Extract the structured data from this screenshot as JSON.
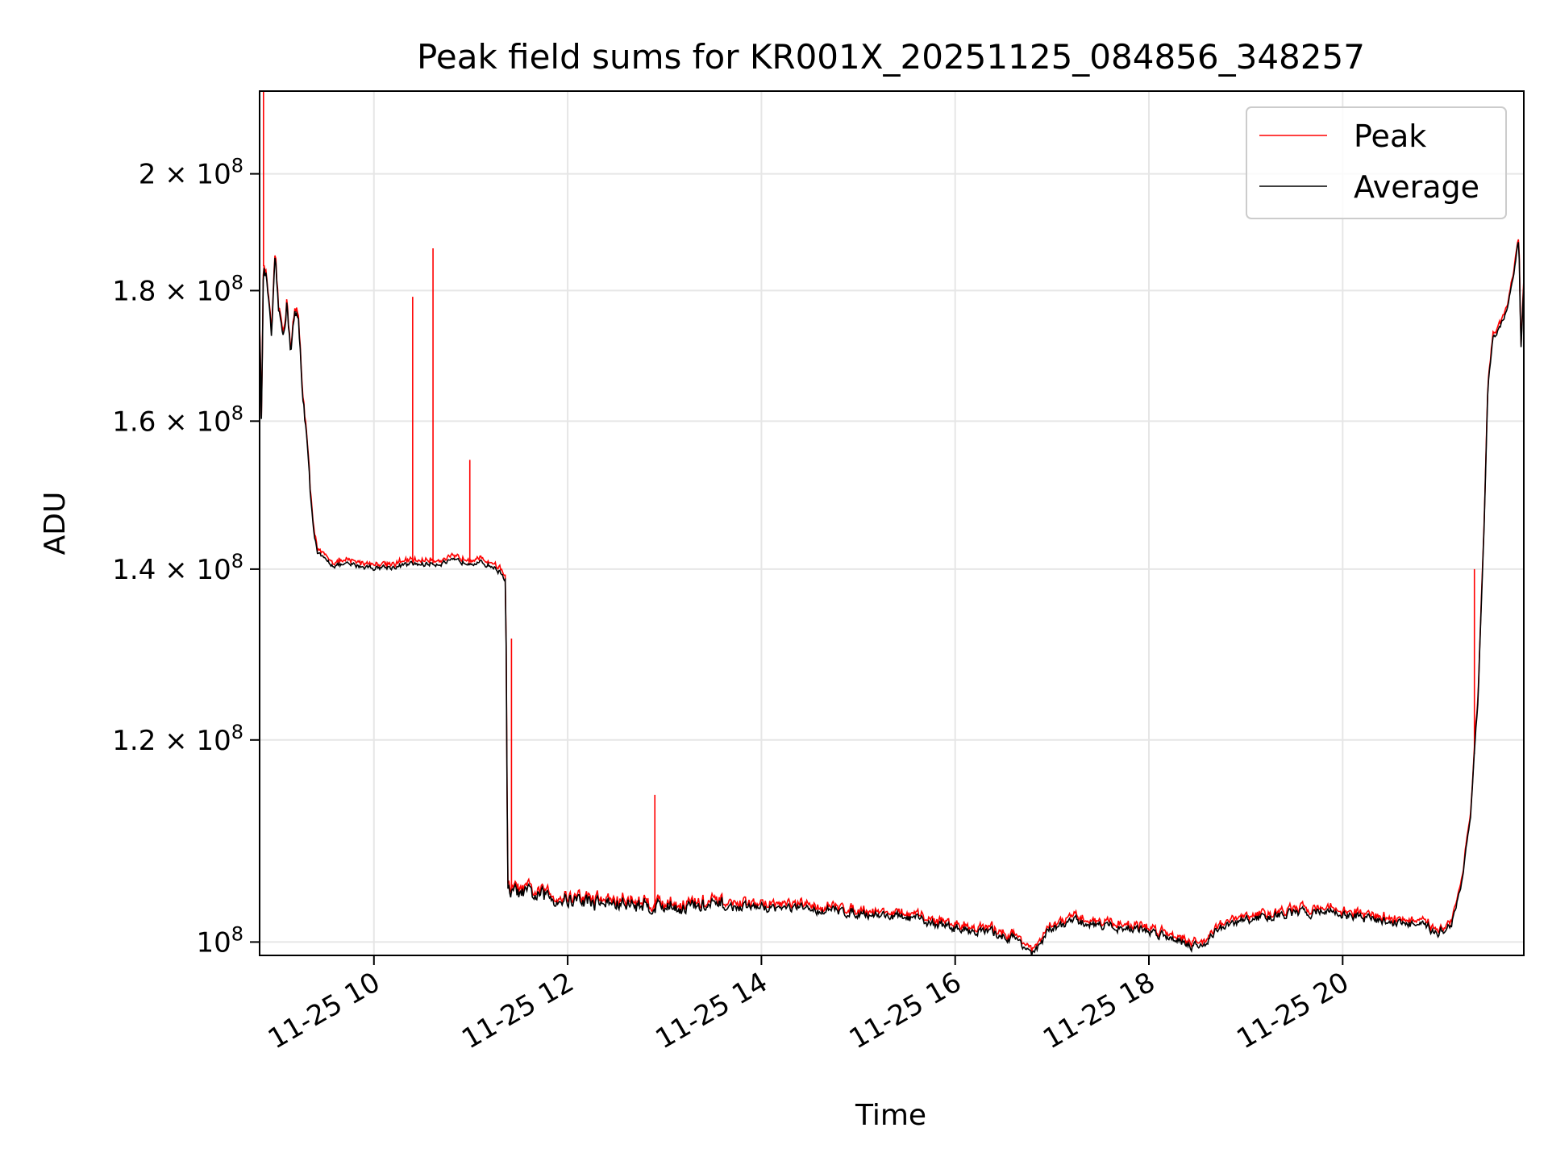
{
  "chart_data": {
    "type": "line",
    "title": "Peak field sums for KR001X_20251125_084856_348257",
    "xlabel": "Time",
    "ylabel": "ADU",
    "yscale": "log",
    "ylim": [
      98800000,
      215500000
    ],
    "xlim_hours": [
      8.82,
      21.87
    ],
    "grid": true,
    "legend_position": "top-right",
    "x_ticks": [
      {
        "hour": 10,
        "label": "11-25 10"
      },
      {
        "hour": 12,
        "label": "11-25 12"
      },
      {
        "hour": 14,
        "label": "11-25 14"
      },
      {
        "hour": 16,
        "label": "11-25 16"
      },
      {
        "hour": 18,
        "label": "11-25 18"
      },
      {
        "hour": 20,
        "label": "11-25 20"
      }
    ],
    "y_ticks": [
      {
        "value": 100000000,
        "base": "10",
        "exp": "8"
      },
      {
        "value": 120000000,
        "base": "1.2 × 10",
        "exp": "8"
      },
      {
        "value": 140000000,
        "base": "1.4 × 10",
        "exp": "8"
      },
      {
        "value": 160000000,
        "base": "1.6 × 10",
        "exp": "8"
      },
      {
        "value": 180000000,
        "base": "1.8 × 10",
        "exp": "8"
      },
      {
        "value": 200000000,
        "base": "2 × 10",
        "exp": "8"
      }
    ],
    "series": [
      {
        "name": "Peak",
        "color": "#ff0000"
      },
      {
        "name": "Average",
        "color": "#000000"
      }
    ],
    "average_profile": [
      [
        8.82,
        175000000
      ],
      [
        8.84,
        160000000
      ],
      [
        8.86,
        184000000
      ],
      [
        8.9,
        181000000
      ],
      [
        8.94,
        172000000
      ],
      [
        8.98,
        184000000
      ],
      [
        9.02,
        176000000
      ],
      [
        9.06,
        173000000
      ],
      [
        9.1,
        178000000
      ],
      [
        9.14,
        171000000
      ],
      [
        9.18,
        176000000
      ],
      [
        9.22,
        175000000
      ],
      [
        9.26,
        165000000
      ],
      [
        9.3,
        159000000
      ],
      [
        9.34,
        150000000
      ],
      [
        9.38,
        145000000
      ],
      [
        9.42,
        142000000
      ],
      [
        9.5,
        141000000
      ],
      [
        9.6,
        140500000
      ],
      [
        9.8,
        140500000
      ],
      [
        10.0,
        140200000
      ],
      [
        10.2,
        140300000
      ],
      [
        10.4,
        140600000
      ],
      [
        10.6,
        140700000
      ],
      [
        10.8,
        140900000
      ],
      [
        11.0,
        141000000
      ],
      [
        11.2,
        140500000
      ],
      [
        11.32,
        139500000
      ],
      [
        11.36,
        138500000
      ],
      [
        11.38,
        104500000
      ],
      [
        11.5,
        104500000
      ],
      [
        11.9,
        104000000
      ],
      [
        12.5,
        103500000
      ],
      [
        13.0,
        103300000
      ],
      [
        13.5,
        103200000
      ],
      [
        14.0,
        103200000
      ],
      [
        14.5,
        103000000
      ],
      [
        15.0,
        102700000
      ],
      [
        15.5,
        102200000
      ],
      [
        16.0,
        101300000
      ],
      [
        16.4,
        100800000
      ],
      [
        16.65,
        100200000
      ],
      [
        16.82,
        98800000
      ],
      [
        16.95,
        100900000
      ],
      [
        17.2,
        101900000
      ],
      [
        17.6,
        101500000
      ],
      [
        18.0,
        101000000
      ],
      [
        18.3,
        100300000
      ],
      [
        18.52,
        99500000
      ],
      [
        18.7,
        101100000
      ],
      [
        19.0,
        102000000
      ],
      [
        19.4,
        102500000
      ],
      [
        19.8,
        102900000
      ],
      [
        20.2,
        102200000
      ],
      [
        20.6,
        101800000
      ],
      [
        20.9,
        101200000
      ],
      [
        21.0,
        100900000
      ],
      [
        21.12,
        101600000
      ],
      [
        21.22,
        105000000
      ],
      [
        21.32,
        112000000
      ],
      [
        21.4,
        125000000
      ],
      [
        21.46,
        145000000
      ],
      [
        21.5,
        165000000
      ],
      [
        21.55,
        172000000
      ],
      [
        21.62,
        174000000
      ],
      [
        21.7,
        177000000
      ],
      [
        21.76,
        182000000
      ],
      [
        21.8,
        187000000
      ],
      [
        21.82,
        188000000
      ],
      [
        21.84,
        170000000
      ],
      [
        21.87,
        181000000
      ]
    ],
    "peak_spikes": [
      {
        "hour": 8.86,
        "value": 215500000
      },
      {
        "hour": 10.4,
        "value": 179000000
      },
      {
        "hour": 10.61,
        "value": 187000000
      },
      {
        "hour": 10.99,
        "value": 154500000
      },
      {
        "hour": 11.42,
        "value": 131500000
      },
      {
        "hour": 12.65,
        "value": 104300000
      },
      {
        "hour": 12.9,
        "value": 114200000
      },
      {
        "hour": 21.36,
        "value": 140000000
      }
    ]
  }
}
